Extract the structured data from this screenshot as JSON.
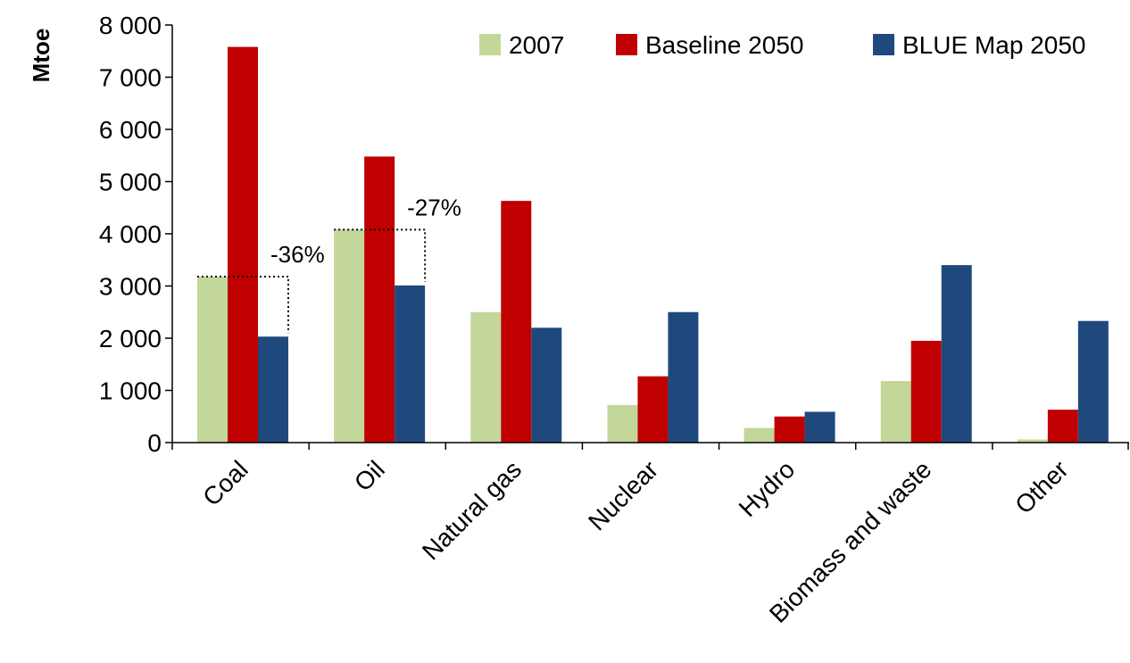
{
  "chart_data": {
    "type": "bar",
    "title": "",
    "xlabel": "",
    "ylabel": "Mtoe",
    "ylim": [
      0,
      8000
    ],
    "yticks": [
      0,
      1000,
      2000,
      3000,
      4000,
      5000,
      6000,
      7000,
      8000
    ],
    "ytick_labels": [
      "0",
      "1 000",
      "2 000",
      "3 000",
      "4 000",
      "5 000",
      "6 000",
      "7 000",
      "8 000"
    ],
    "grid": false,
    "legend_position": "top-right",
    "categories": [
      "Coal",
      "Oil",
      "Natural gas",
      "Nuclear",
      "Hydro",
      "Biomass and waste",
      "Other"
    ],
    "series": [
      {
        "name": "2007",
        "color": "#c4d79b",
        "values": [
          3180,
          4080,
          2500,
          720,
          280,
          1180,
          60
        ]
      },
      {
        "name": "Baseline 2050",
        "color": "#c00000",
        "values": [
          7580,
          5480,
          4630,
          1270,
          500,
          1950,
          630
        ]
      },
      {
        "name": "BLUE Map 2050",
        "color": "#1f497d",
        "values": [
          2030,
          3010,
          2200,
          2500,
          590,
          3400,
          2330
        ]
      }
    ],
    "annotations": [
      {
        "text": "-36%",
        "category": "Coal",
        "from_value": 3180,
        "to_value": 2030
      },
      {
        "text": "-27%",
        "category": "Oil",
        "from_value": 4080,
        "to_value": 3010
      }
    ]
  }
}
